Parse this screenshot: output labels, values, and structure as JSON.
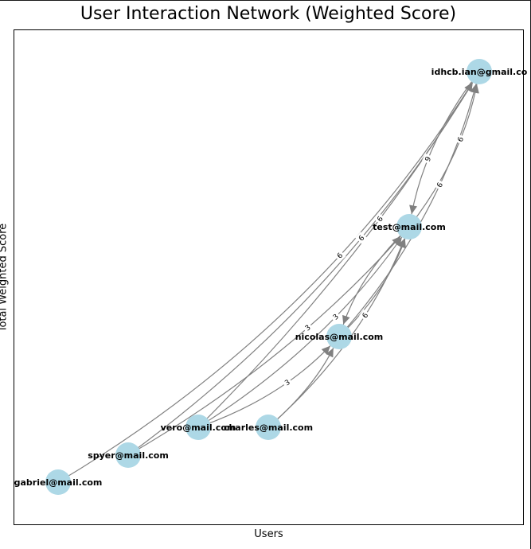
{
  "chart": {
    "title": "User Interaction Network (Weighted Score)",
    "xlabel": "Users",
    "ylabel": "Total Weighted Score"
  },
  "colors": {
    "node": "#add8e6",
    "edge": "#808080",
    "text": "#000000"
  },
  "nodes": [
    {
      "id": "gabriel",
      "label": "gabriel@mail.com"
    },
    {
      "id": "spyer",
      "label": "spyer@mail.com"
    },
    {
      "id": "vero",
      "label": "vero@mail.com"
    },
    {
      "id": "charles",
      "label": "charles@mail.com"
    },
    {
      "id": "nicolas",
      "label": "nicolas@mail.com"
    },
    {
      "id": "test",
      "label": "test@mail.com"
    },
    {
      "id": "idhcb",
      "label": "idhcb.ian@gmail.co"
    }
  ],
  "edges": [
    {
      "from": "gabriel",
      "to": "idhcb",
      "weight": "6"
    },
    {
      "from": "spyer",
      "to": "idhcb",
      "weight": "6"
    },
    {
      "from": "vero",
      "to": "idhcb",
      "weight": "6"
    },
    {
      "from": "vero",
      "to": "test",
      "weight": "3"
    },
    {
      "from": "spyer",
      "to": "test",
      "weight": "3"
    },
    {
      "from": "vero",
      "to": "nicolas",
      "weight": "3"
    },
    {
      "from": "charles",
      "to": "test",
      "weight": "6"
    },
    {
      "from": "charles",
      "to": "nicolas",
      "weight": ""
    },
    {
      "from": "nicolas",
      "to": "test",
      "weight": ""
    },
    {
      "from": "test",
      "to": "nicolas",
      "weight": ""
    },
    {
      "from": "nicolas",
      "to": "idhcb",
      "weight": "6"
    },
    {
      "from": "test",
      "to": "idhcb",
      "weight": "6"
    },
    {
      "from": "idhcb",
      "to": "test",
      "weight": "9"
    }
  ]
}
